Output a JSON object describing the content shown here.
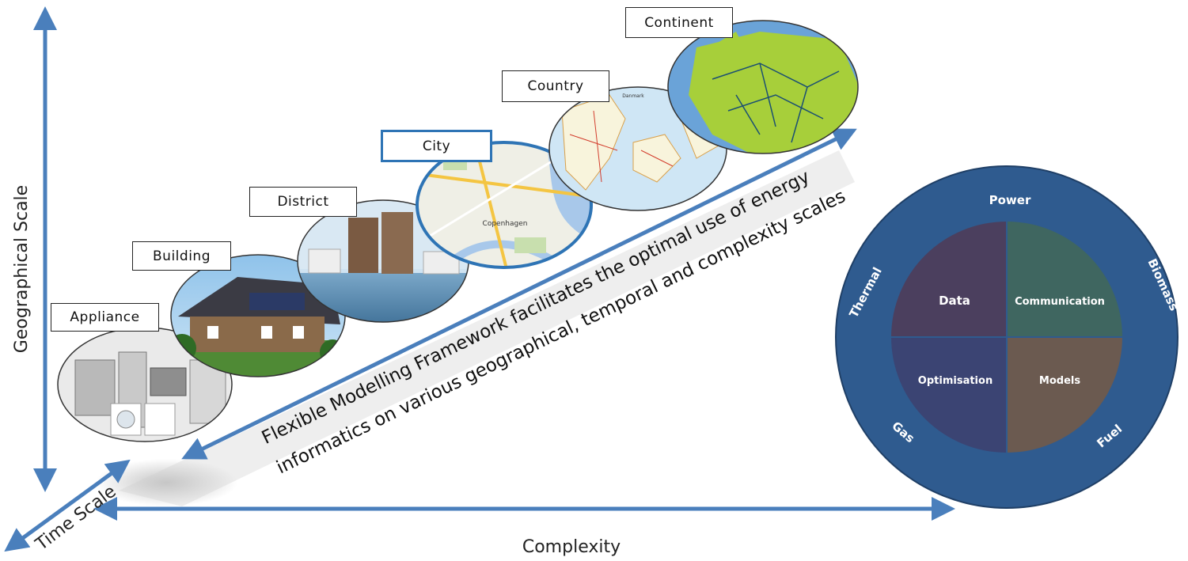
{
  "axes": {
    "vertical_label": "Geographical Scale",
    "horizontal_label": "Complexity",
    "diagonal_label": "Time Scale",
    "arrow_color": "#4a7fbc"
  },
  "scales": [
    {
      "label": "Appliance",
      "image": "home-appliances-photo"
    },
    {
      "label": "Building",
      "image": "house-with-solar-panels-photo"
    },
    {
      "label": "District",
      "image": "waterfront-district-photo"
    },
    {
      "label": "City",
      "image": "copenhagen-street-map",
      "highlighted": true,
      "map_text": "Copenhagen"
    },
    {
      "label": "Country",
      "image": "denmark-road-map",
      "map_text": "Danmark"
    },
    {
      "label": "Continent",
      "image": "europe-grid-map"
    }
  ],
  "framework_text": {
    "line1": "Flexible Modelling Framework facilitates the optimal use of energy",
    "line2": "informatics on various geographical, temporal and complexity scales"
  },
  "circle": {
    "outer_labels": {
      "top": "Power",
      "left": "Thermal",
      "right": "Biomass",
      "bottom_left": "Gas",
      "bottom_right": "Fuel"
    },
    "quadrants": {
      "top_left": "Data",
      "top_right": "Communication",
      "bottom_left": "Optimisation",
      "bottom_right": "Models"
    },
    "colors": {
      "outer": "#2f5b8f",
      "top_left": "#4b3f5e",
      "top_right": "#3f6660",
      "bottom_left": "#3b4473",
      "bottom_right": "#6b5a50"
    }
  }
}
